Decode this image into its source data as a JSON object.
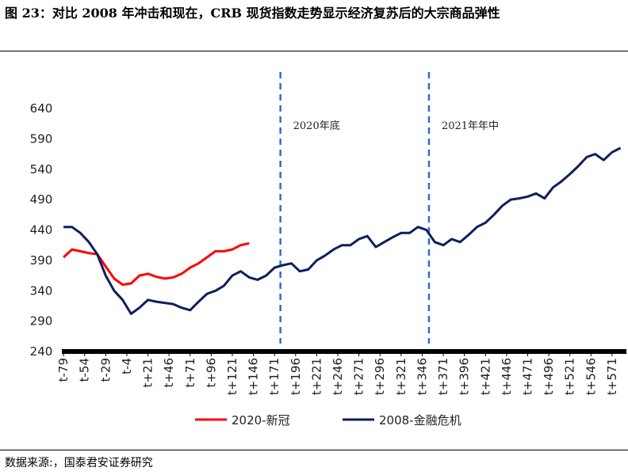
{
  "title": "图 23：对比 2008 年冲击和现在，CRB 现货指数走势显示经济复苏后的大宗商品弹性",
  "source": "数据来源:，国泰君安证券研究",
  "chart_data": {
    "type": "line",
    "x": [
      -79,
      -69,
      -59,
      -49,
      -39,
      -29,
      -19,
      -9,
      1,
      11,
      21,
      31,
      41,
      51,
      61,
      71,
      81,
      91,
      101,
      111,
      121,
      131,
      141,
      151,
      161,
      171,
      181,
      191,
      201,
      211,
      221,
      231,
      241,
      251,
      261,
      271,
      281,
      291,
      301,
      311,
      321,
      331,
      341,
      351,
      361,
      371,
      381,
      391,
      401,
      411,
      421,
      431,
      441,
      451,
      461,
      471,
      481,
      491,
      501,
      511,
      521,
      531,
      541,
      551,
      561,
      571,
      581
    ],
    "series": [
      {
        "name": "2020-新冠",
        "color": "#ff0000",
        "values": [
          395,
          408,
          405,
          402,
          400,
          380,
          360,
          350,
          352,
          365,
          368,
          363,
          360,
          362,
          368,
          378,
          385,
          395,
          405,
          405,
          408,
          415,
          418,
          null,
          null,
          null,
          null,
          null,
          null,
          null,
          null,
          null,
          null,
          null,
          null,
          null,
          null,
          null,
          null,
          null,
          null,
          null,
          null,
          null,
          null,
          null,
          null,
          null,
          null,
          null,
          null,
          null,
          null,
          null,
          null,
          null,
          null,
          null,
          null,
          null,
          null,
          null,
          null,
          null,
          null,
          null,
          null
        ]
      },
      {
        "name": "2008-金融危机",
        "color": "#0d1f5c",
        "values": [
          445,
          445,
          435,
          420,
          400,
          365,
          340,
          325,
          302,
          312,
          325,
          322,
          320,
          318,
          312,
          308,
          322,
          335,
          340,
          348,
          365,
          372,
          362,
          358,
          365,
          378,
          382,
          385,
          372,
          375,
          390,
          398,
          408,
          415,
          415,
          425,
          430,
          412,
          420,
          428,
          435,
          435,
          445,
          440,
          420,
          415,
          425,
          420,
          432,
          445,
          452,
          465,
          480,
          490,
          492,
          495,
          500,
          492,
          510,
          520,
          532,
          545,
          560,
          565,
          555,
          568,
          575
        ]
      }
    ],
    "xlim": [
      -81,
      588
    ],
    "xticks": [
      {
        "value": -79,
        "label": "t-79"
      },
      {
        "value": -54,
        "label": "t-54"
      },
      {
        "value": -29,
        "label": "t-29"
      },
      {
        "value": -4,
        "label": "t-4"
      },
      {
        "value": 21,
        "label": "t+21"
      },
      {
        "value": 46,
        "label": "t+46"
      },
      {
        "value": 71,
        "label": "t+71"
      },
      {
        "value": 96,
        "label": "t+96"
      },
      {
        "value": 121,
        "label": "t+121"
      },
      {
        "value": 146,
        "label": "t+146"
      },
      {
        "value": 171,
        "label": "t+171"
      },
      {
        "value": 196,
        "label": "t+196"
      },
      {
        "value": 221,
        "label": "t+221"
      },
      {
        "value": 246,
        "label": "t+246"
      },
      {
        "value": 271,
        "label": "t+271"
      },
      {
        "value": 296,
        "label": "t+296"
      },
      {
        "value": 321,
        "label": "t+321"
      },
      {
        "value": 346,
        "label": "t+346"
      },
      {
        "value": 371,
        "label": "t+371"
      },
      {
        "value": 396,
        "label": "t+396"
      },
      {
        "value": 421,
        "label": "t+421"
      },
      {
        "value": 446,
        "label": "t+446"
      },
      {
        "value": 471,
        "label": "t+471"
      },
      {
        "value": 496,
        "label": "t+496"
      },
      {
        "value": 521,
        "label": "t+521"
      },
      {
        "value": 546,
        "label": "t+546"
      },
      {
        "value": 571,
        "label": "t+571"
      }
    ],
    "ylim": [
      240,
      640
    ],
    "yticks": [
      240,
      290,
      340,
      390,
      440,
      490,
      540,
      590,
      640
    ],
    "annotations": [
      {
        "x": 178,
        "text": "2020年底"
      },
      {
        "x": 354,
        "text": "2021年年中"
      }
    ],
    "legend": "bottom"
  }
}
